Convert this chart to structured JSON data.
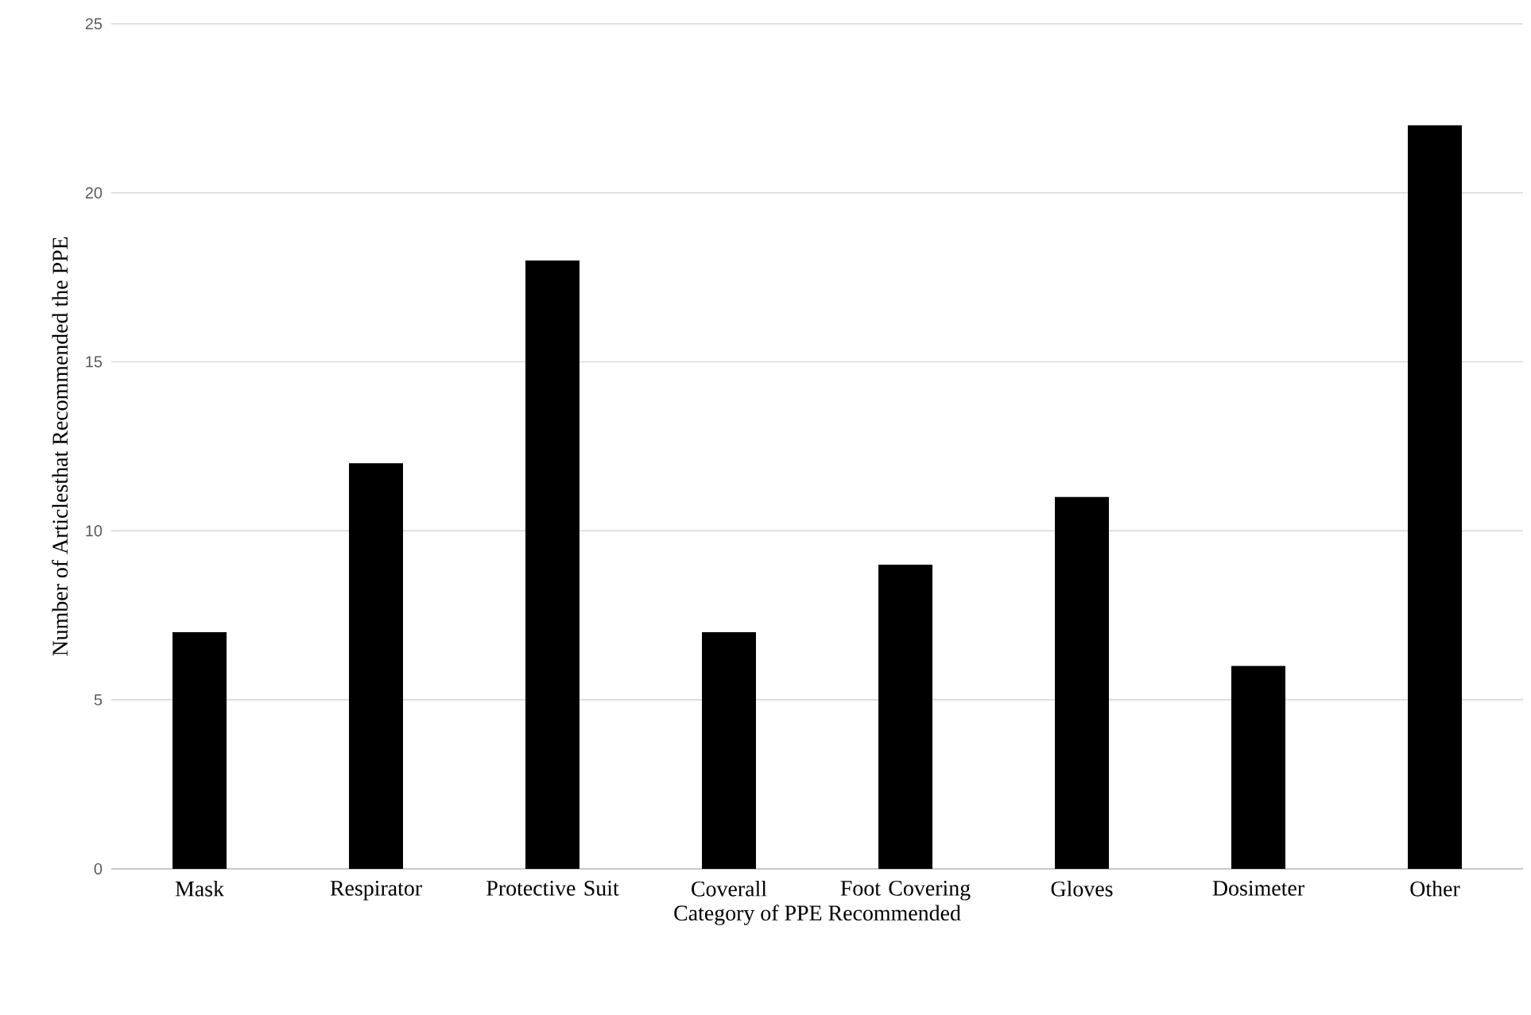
{
  "chart_data": {
    "type": "bar",
    "xlabel": "Category of PPE Recommended",
    "ylabel": "Number of Articlesthat Recommended the PPE",
    "categories": [
      "Mask",
      "Respirator",
      "Protective Suit",
      "Coverall",
      "Foot Covering",
      "Gloves",
      "Dosimeter",
      "Other"
    ],
    "values": [
      7,
      12,
      18,
      7,
      9,
      11,
      6,
      22
    ],
    "color": "#000000",
    "ylim": [
      0,
      25
    ],
    "yticks": [
      0,
      5,
      10,
      15,
      20,
      25
    ],
    "grid": "y"
  }
}
